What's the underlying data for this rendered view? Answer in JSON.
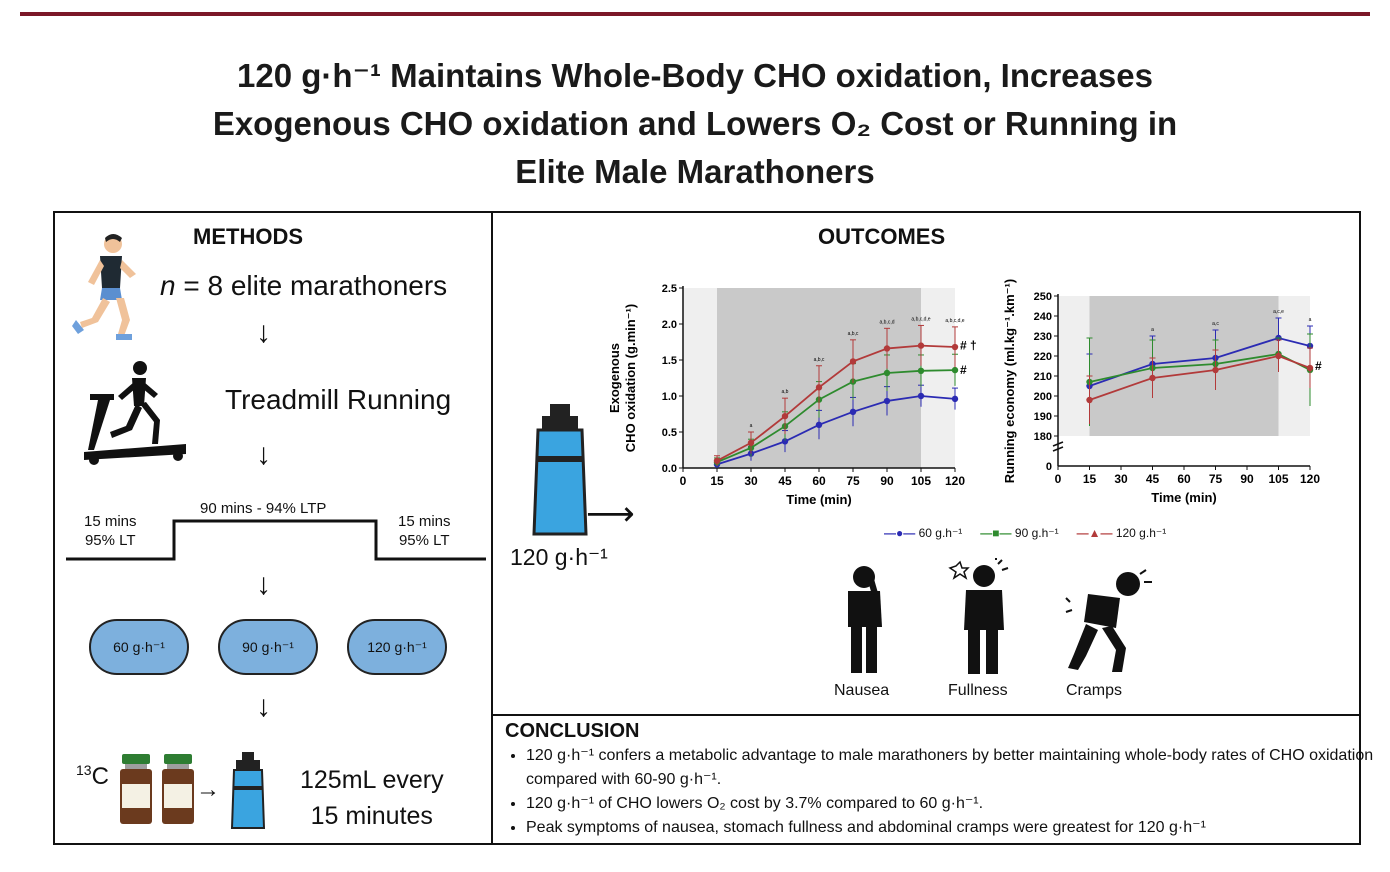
{
  "title": {
    "line1": "120 g·h⁻¹ Maintains Whole-Body CHO oxidation, Increases",
    "line2": "Exogenous CHO oxidation and Lowers O₂ Cost or Running in",
    "line3": "Elite Male Marathoners"
  },
  "methods": {
    "heading": "METHODS",
    "participants_n": "n",
    "participants": " = 8 elite marathoners",
    "treadmill": "Treadmill Running",
    "phase1_dur": "15 mins",
    "phase1_int": "95% LT",
    "phase2": "90 mins - 94% LTP",
    "phase3_dur": "15 mins",
    "phase3_int": "95% LT",
    "doses": [
      "60 g·h⁻¹",
      "90 g·h⁻¹",
      "120 g·h⁻¹"
    ],
    "isotope_mass": "13",
    "isotope_symbol": "C",
    "dosing_line1": "125mL every",
    "dosing_line2": "15 minutes"
  },
  "outcomes": {
    "heading": "OUTCOMES",
    "bottle_label": "120 g·h⁻¹",
    "legend": [
      "60 g.h⁻¹",
      "90 g.h⁻¹",
      "120 g.h⁻¹"
    ],
    "symptoms": [
      "Nausea",
      "Fullness",
      "Cramps"
    ]
  },
  "colors": {
    "s60": "#2b2bb3",
    "s90": "#2e8b2e",
    "s120": "#b23a3a",
    "accent": "#7b1728",
    "pill": "#7db0dd"
  },
  "chart_data": [
    {
      "type": "line",
      "ylabel_line1": "Exogenous",
      "ylabel_line2": "CHO oxidation (g.min⁻¹)",
      "xlabel": "Time (min)",
      "x": [
        15,
        30,
        45,
        60,
        75,
        90,
        105,
        120
      ],
      "xticks": [
        "0",
        "15",
        "30",
        "45",
        "60",
        "75",
        "90",
        "105",
        "120"
      ],
      "yticks": [
        "0.0",
        "0.5",
        "1.0",
        "1.5",
        "2.0",
        "2.5"
      ],
      "xlim": [
        0,
        120
      ],
      "ylim": [
        0,
        2.5
      ],
      "series": [
        {
          "name": "60 g.h⁻¹",
          "values": [
            0.05,
            0.2,
            0.37,
            0.6,
            0.78,
            0.93,
            1.0,
            0.96
          ],
          "err": [
            0.05,
            0.1,
            0.15,
            0.2,
            0.2,
            0.2,
            0.15,
            0.15
          ]
        },
        {
          "name": "90 g.h⁻¹",
          "values": [
            0.08,
            0.28,
            0.58,
            0.95,
            1.2,
            1.32,
            1.35,
            1.36
          ],
          "err": [
            0.06,
            0.12,
            0.2,
            0.25,
            0.25,
            0.25,
            0.22,
            0.22
          ]
        },
        {
          "name": "120 g.h⁻¹",
          "values": [
            0.1,
            0.35,
            0.72,
            1.12,
            1.48,
            1.66,
            1.7,
            1.68
          ],
          "err": [
            0.07,
            0.15,
            0.25,
            0.3,
            0.3,
            0.28,
            0.28,
            0.28
          ]
        }
      ],
      "annotations": [
        "a",
        "a,b",
        "a,b,c",
        "a,b,c",
        "a,b,c,d",
        "a,b,c,d,e",
        "a,b,c,d,e"
      ],
      "end_marks": [
        "#",
        "# †"
      ]
    },
    {
      "type": "line",
      "ylabel": "Running economy (ml.kg⁻¹.km⁻¹)",
      "xlabel": "Time (min)",
      "x": [
        15,
        45,
        75,
        105,
        120
      ],
      "xticks": [
        "0",
        "15",
        "30",
        "45",
        "60",
        "75",
        "90",
        "105",
        "120"
      ],
      "yticks": [
        "180",
        "190",
        "200",
        "210",
        "220",
        "230",
        "240",
        "250"
      ],
      "xlim": [
        0,
        120
      ],
      "ylim": [
        180,
        250
      ],
      "series": [
        {
          "name": "60 g.h⁻¹",
          "values": [
            205,
            216,
            219,
            229,
            225
          ],
          "err": [
            16,
            14,
            14,
            10,
            10
          ]
        },
        {
          "name": "90 g.h⁻¹",
          "values": [
            207,
            214,
            216,
            221,
            213
          ],
          "err": [
            22,
            14,
            12,
            8,
            18
          ]
        },
        {
          "name": "120 g.h⁻¹",
          "values": [
            198,
            209,
            213,
            220,
            214
          ],
          "err": [
            12,
            10,
            10,
            8,
            10
          ]
        }
      ],
      "annotations": [
        "a",
        "a,c",
        "a,c,e",
        "a"
      ],
      "end_marks": [
        "#"
      ]
    }
  ],
  "conclusion": {
    "heading": "CONCLUSION",
    "items": [
      "120 g·h⁻¹ confers a metabolic advantage to male marathoners by better maintaining whole-body rates of CHO oxidation compared with 60-90 g·h⁻¹.",
      "120 g·h⁻¹ of CHO lowers O₂ cost by 3.7% compared to 60 g·h⁻¹.",
      "Peak symptoms of nausea, stomach fullness and abdominal cramps were greatest for 120 g·h⁻¹"
    ]
  }
}
